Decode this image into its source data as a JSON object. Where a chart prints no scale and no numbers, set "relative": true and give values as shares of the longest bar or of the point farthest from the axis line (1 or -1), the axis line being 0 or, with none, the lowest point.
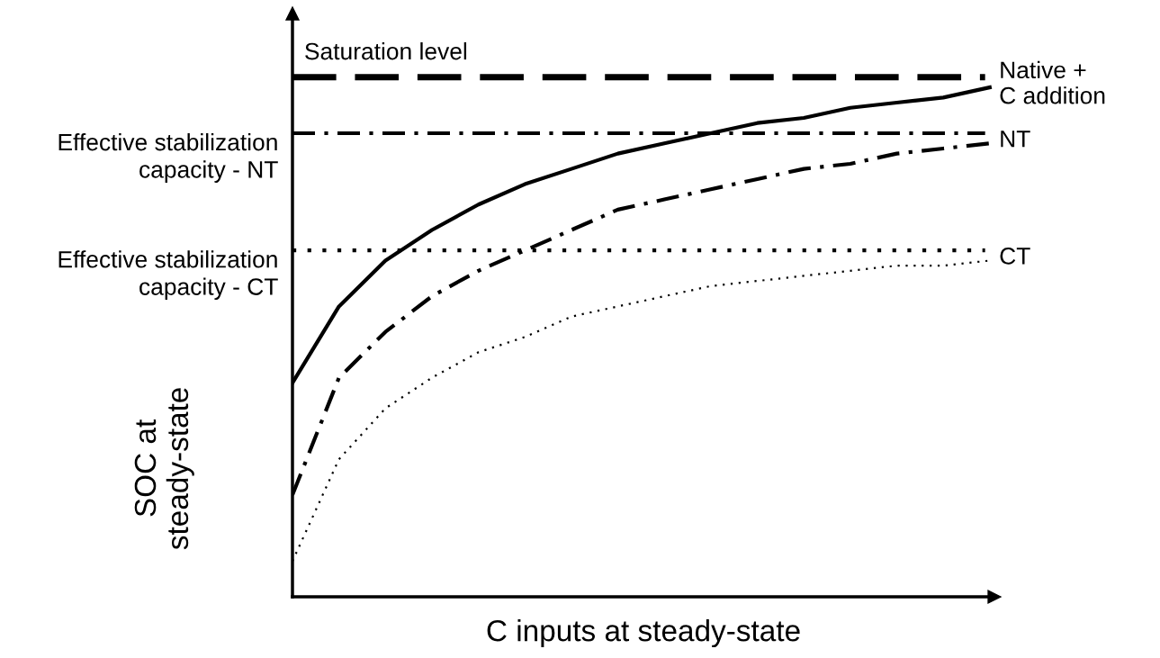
{
  "chart_data": {
    "type": "line",
    "relative": true,
    "xlabel": "C inputs at steady-state",
    "ylabel": "SOC at\nsteady-state",
    "categories": [
      null,
      null,
      null,
      null,
      null,
      null,
      null,
      null,
      null,
      null,
      null,
      null,
      null,
      null,
      null,
      null
    ],
    "series": [
      {
        "name": "Native +\nC addition",
        "color": "#000000",
        "line_style": "solid",
        "values": [
          0.42,
          0.57,
          0.66,
          0.72,
          0.77,
          0.81,
          0.84,
          0.87,
          0.89,
          0.91,
          0.93,
          0.94,
          0.96,
          0.97,
          0.98,
          1.0
        ]
      },
      {
        "name": "NT",
        "color": "#000000",
        "line_style": "dashdot",
        "values": [
          0.2,
          0.43,
          0.52,
          0.59,
          0.64,
          0.68,
          0.72,
          0.76,
          0.78,
          0.8,
          0.82,
          0.84,
          0.85,
          0.87,
          0.88,
          0.89
        ]
      },
      {
        "name": "CT",
        "color": "#000000",
        "line_style": "dotted",
        "values": [
          0.07,
          0.27,
          0.37,
          0.43,
          0.48,
          0.51,
          0.55,
          0.57,
          0.59,
          0.61,
          0.62,
          0.63,
          0.64,
          0.65,
          0.65,
          0.66
        ]
      }
    ],
    "ref_lines": [
      {
        "axis": "y",
        "value": 1.02,
        "label": "Saturation level",
        "color": "#000000",
        "line_style": "dashed"
      },
      {
        "axis": "y",
        "value": 0.91,
        "label": "Effective stabilization\ncapacity - NT",
        "color": "#000000",
        "line_style": "dashdot"
      },
      {
        "axis": "y",
        "value": 0.68,
        "label": "Effective stabilization\ncapacity - CT",
        "color": "#000000",
        "line_style": "dotted"
      }
    ]
  }
}
